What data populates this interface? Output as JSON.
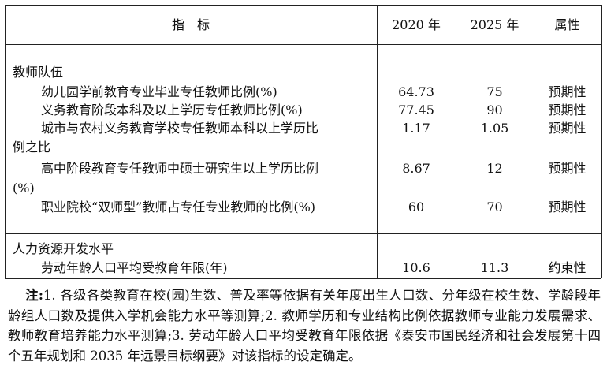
{
  "header": {
    "indicator": "指　标",
    "y2020": "2020 年",
    "y2025": "2025 年",
    "attr": "属性"
  },
  "sections": [
    {
      "title": "教师队伍",
      "rows": [
        {
          "label": "幼儿园学前教育专业毕业专任教师比例(%)",
          "v2020": "64.73",
          "v2025": "75",
          "attr": "预期性"
        },
        {
          "label": "义务教育阶段本科及以上学历专任教师比例(%)",
          "v2020": "77.45",
          "v2025": "90",
          "attr": "预期性"
        },
        {
          "label": "城市与农村义务教育学校专任教师本科以上学历比",
          "label_cont": "例之比",
          "v2020": "1.17",
          "v2025": "1.05",
          "attr": "预期性"
        },
        {
          "label": "高中阶段教育专任教师中硕士研究生以上学历比例",
          "label_cont": "(%)",
          "v2020": "8.67",
          "v2025": "12",
          "attr": "预期性"
        },
        {
          "label": "职业院校“双师型”教师占专任专业教师的比例(%)",
          "v2020": "60",
          "v2025": "70",
          "attr": "预期性"
        }
      ]
    },
    {
      "title": "人力资源开发水平",
      "rows": [
        {
          "label": "劳动年龄人口平均受教育年限(年)",
          "v2020": "10.6",
          "v2025": "11.3",
          "attr": "约束性"
        }
      ]
    }
  ],
  "note": {
    "prefix": "注:",
    "text": "1. 各级各类教育在校(园)生数、普及率等依据有关年度出生人口数、分年级在校生数、学龄段年龄组人口数及提供入学机会能力水平等测算;2. 教师学历和专业结构比例依据教师专业能力发展需求、教师教育培养能力水平测算;3. 劳动年龄人口平均受教育年限依据《泰安市国民经济和社会发展第十四个五年规划和 2035 年远景目标纲要》对该指标的设定确定。"
  }
}
